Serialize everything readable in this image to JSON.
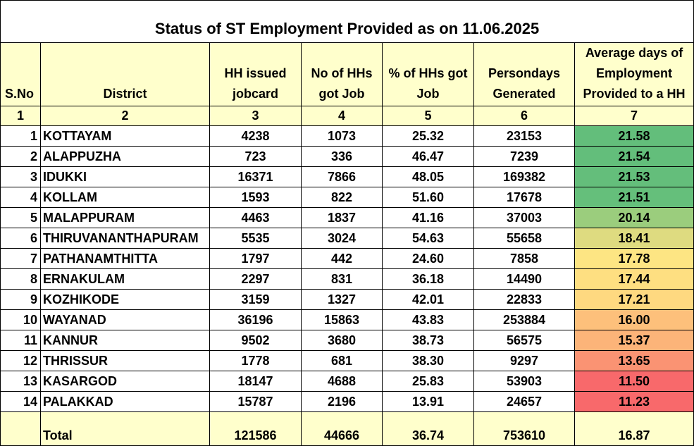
{
  "title": "Status of ST Employment Provided as on 11.06.2025",
  "headers": {
    "sno": "S.No",
    "district": "District",
    "jobcard": "HH issued jobcard",
    "got_job": "No of HHs got Job",
    "pct": "% of HHs got Job",
    "persondays": "Persondays Generated",
    "avg_days": "Average days of Employment Provided to a HH"
  },
  "column_numbers": [
    "1",
    "2",
    "3",
    "4",
    "5",
    "6",
    "7"
  ],
  "rows": [
    {
      "sno": "1",
      "district": "KOTTAYAM",
      "jobcard": "4238",
      "got_job": "1073",
      "pct": "25.32",
      "persondays": "23153",
      "avg_days": "21.58",
      "color": "#63be7b"
    },
    {
      "sno": "2",
      "district": "ALAPPUZHA",
      "jobcard": "723",
      "got_job": "336",
      "pct": "46.47",
      "persondays": "7239",
      "avg_days": "21.54",
      "color": "#63be7b"
    },
    {
      "sno": "3",
      "district": "IDUKKI",
      "jobcard": "16371",
      "got_job": "7866",
      "pct": "48.05",
      "persondays": "169382",
      "avg_days": "21.53",
      "color": "#64be7b"
    },
    {
      "sno": "4",
      "district": "KOLLAM",
      "jobcard": "1593",
      "got_job": "822",
      "pct": "51.60",
      "persondays": "17678",
      "avg_days": "21.51",
      "color": "#65bf7b"
    },
    {
      "sno": "5",
      "district": "MALAPPURAM",
      "jobcard": "4463",
      "got_job": "1837",
      "pct": "41.16",
      "persondays": "37003",
      "avg_days": "20.14",
      "color": "#9bcd7d"
    },
    {
      "sno": "6",
      "district": "THIRUVANANTHAPURAM",
      "jobcard": "5535",
      "got_job": "3024",
      "pct": "54.63",
      "persondays": "55658",
      "avg_days": "18.41",
      "color": "#dedb80"
    },
    {
      "sno": "7",
      "district": "PATHANAMTHITTA",
      "jobcard": "1797",
      "got_job": "442",
      "pct": "24.60",
      "persondays": "7858",
      "avg_days": "17.78",
      "color": "#fde583"
    },
    {
      "sno": "8",
      "district": "ERNAKULAM",
      "jobcard": "2297",
      "got_job": "831",
      "pct": "36.18",
      "persondays": "14490",
      "avg_days": "17.44",
      "color": "#fedf81"
    },
    {
      "sno": "9",
      "district": "KOZHIKODE",
      "jobcard": "3159",
      "got_job": "1327",
      "pct": "42.01",
      "persondays": "22833",
      "avg_days": "17.21",
      "color": "#fed980"
    },
    {
      "sno": "10",
      "district": "WAYANAD",
      "jobcard": "36196",
      "got_job": "15863",
      "pct": "43.83",
      "persondays": "253884",
      "avg_days": "16.00",
      "color": "#fdc07b"
    },
    {
      "sno": "11",
      "district": "KANNUR",
      "jobcard": "9502",
      "got_job": "3680",
      "pct": "38.73",
      "persondays": "56575",
      "avg_days": "15.37",
      "color": "#fcb479"
    },
    {
      "sno": "12",
      "district": "THRISSUR",
      "jobcard": "1778",
      "got_job": "681",
      "pct": "38.30",
      "persondays": "9297",
      "avg_days": "13.65",
      "color": "#fa9373"
    },
    {
      "sno": "13",
      "district": "KASARGOD",
      "jobcard": "18147",
      "got_job": "4688",
      "pct": "25.83",
      "persondays": "53903",
      "avg_days": "11.50",
      "color": "#f8696b"
    },
    {
      "sno": "14",
      "district": "PALAKKAD",
      "jobcard": "15787",
      "got_job": "2196",
      "pct": "13.91",
      "persondays": "24657",
      "avg_days": "11.23",
      "color": "#f8696b"
    }
  ],
  "total": {
    "label": "Total",
    "jobcard": "121586",
    "got_job": "44666",
    "pct": "36.74",
    "persondays": "753610",
    "avg_days": "16.87"
  },
  "colors": {
    "header_bg": "#ffffcc",
    "scale_high": "#63be7b",
    "scale_mid": "#ffeb84",
    "scale_low": "#f8696b"
  }
}
